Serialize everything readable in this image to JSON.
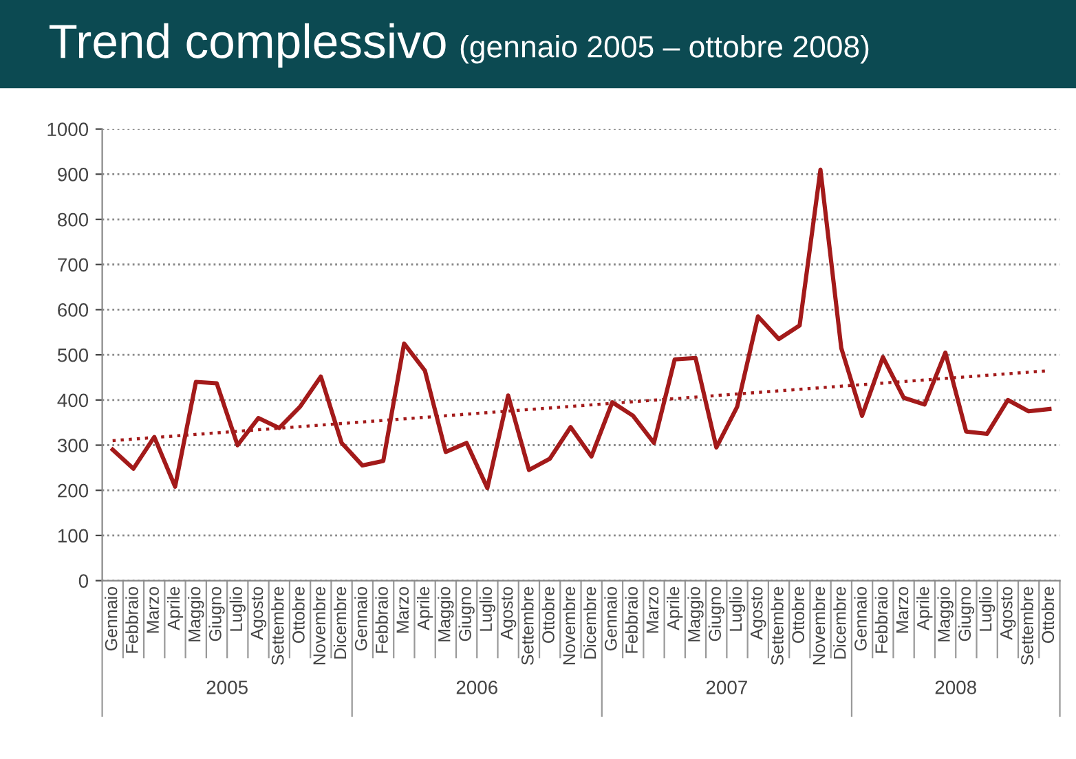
{
  "chart_data": {
    "type": "line",
    "title": "Trend complessivo",
    "subtitle": "(gennaio 2005 – ottobre 2008)",
    "categories": [
      "Gennaio",
      "Febbraio",
      "Marzo",
      "Aprile",
      "Maggio",
      "Giugno",
      "Luglio",
      "Agosto",
      "Settembre",
      "Ottobre",
      "Novembre",
      "Dicembre",
      "Gennaio",
      "Febbraio",
      "Marzo",
      "Aprile",
      "Maggio",
      "Giugno",
      "Luglio",
      "Agosto",
      "Settembre",
      "Ottobre",
      "Novembre",
      "Dicembre",
      "Gennaio",
      "Febbraio",
      "Marzo",
      "Aprile",
      "Maggio",
      "Giugno",
      "Luglio",
      "Agosto",
      "Settembre",
      "Ottobre",
      "Novembre",
      "Dicembre",
      "Gennaio",
      "Febbraio",
      "Marzo",
      "Aprile",
      "Maggio",
      "Giugno",
      "Luglio",
      "Agosto",
      "Settembre",
      "Ottobre"
    ],
    "series": [
      {
        "color": "#a31a1a",
        "line_style": "solid",
        "values": [
          290,
          248,
          318,
          208,
          440,
          437,
          300,
          360,
          338,
          385,
          452,
          305,
          255,
          265,
          525,
          465,
          285,
          305,
          205,
          410,
          245,
          270,
          340,
          275,
          395,
          365,
          305,
          490,
          493,
          295,
          385,
          585,
          535,
          565,
          910,
          515,
          365,
          495,
          405,
          390,
          505,
          330,
          325,
          400,
          375,
          380
        ]
      },
      {
        "color": "#a31a1a",
        "line_style": "dotted",
        "values": [
          310,
          null,
          null,
          null,
          null,
          null,
          null,
          null,
          null,
          null,
          null,
          null,
          null,
          null,
          null,
          null,
          null,
          null,
          null,
          null,
          null,
          null,
          null,
          null,
          null,
          null,
          null,
          null,
          null,
          null,
          null,
          null,
          null,
          null,
          null,
          null,
          null,
          null,
          null,
          null,
          null,
          null,
          null,
          null,
          null,
          465
        ]
      }
    ],
    "annotations": [
      "2005",
      "2006",
      "2007",
      "2008"
    ],
    "ylim": [
      0,
      1000
    ],
    "yticks": [
      0,
      100,
      200,
      300,
      400,
      500,
      600,
      700,
      800,
      900,
      1000
    ],
    "grid": "y",
    "legend": false,
    "marker": "none"
  }
}
